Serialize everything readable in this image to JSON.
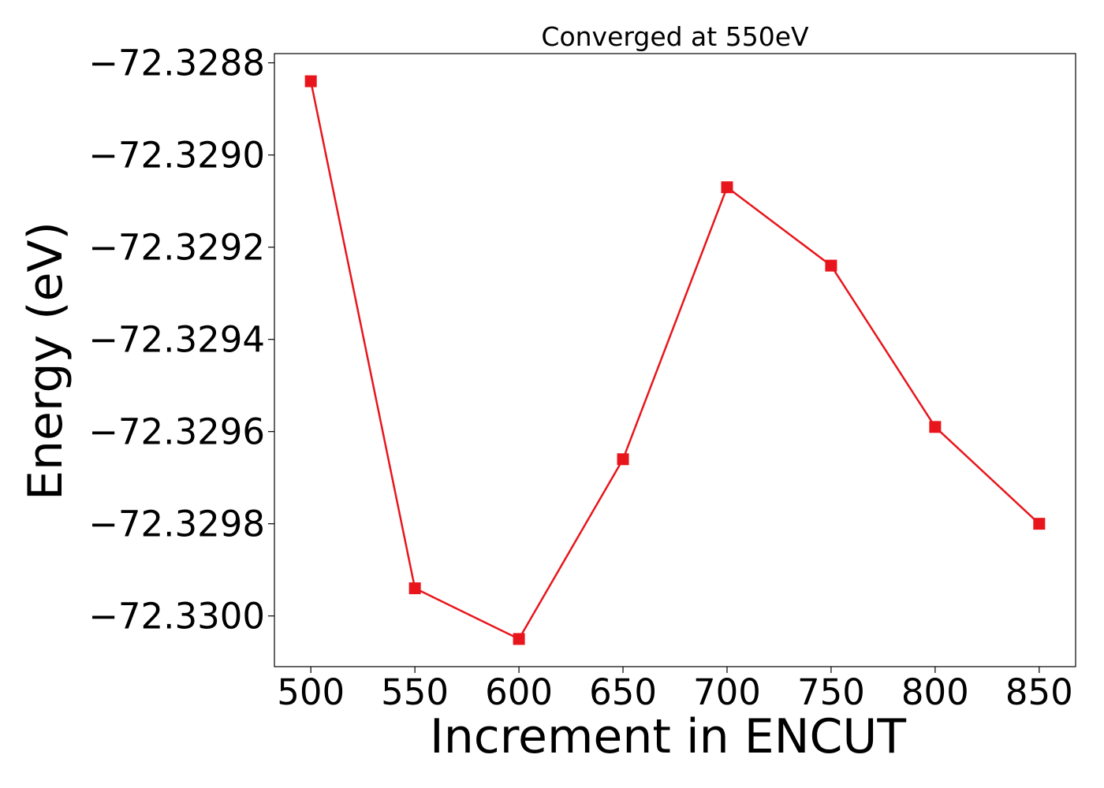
{
  "chart_data": {
    "type": "line",
    "title": "Converged at 550eV",
    "xlabel": "Increment in ENCUT",
    "ylabel": "Energy (eV)",
    "x": [
      500,
      550,
      600,
      650,
      700,
      750,
      800,
      850
    ],
    "series": [
      {
        "values": [
          -72.32884,
          -72.32994,
          -72.33005,
          -72.32966,
          -72.32907,
          -72.32924,
          -72.32959,
          -72.3298
        ],
        "color": "#e8161c",
        "marker": "square"
      }
    ],
    "xticks": [
      500,
      550,
      600,
      650,
      700,
      750,
      800,
      850
    ],
    "xtick_labels": [
      "500",
      "550",
      "600",
      "650",
      "700",
      "750",
      "800",
      "850"
    ],
    "yticks": [
      -72.3288,
      -72.329,
      -72.3292,
      -72.3294,
      -72.3296,
      -72.3298,
      -72.33
    ],
    "ytick_labels": [
      "−72.3288",
      "−72.3290",
      "−72.3292",
      "−72.3294",
      "−72.3296",
      "−72.3298",
      "−72.3300"
    ],
    "xlim": [
      482.5,
      867.5
    ],
    "ylim": [
      -72.33011,
      -72.32878
    ],
    "grid": false,
    "legend": "none"
  }
}
